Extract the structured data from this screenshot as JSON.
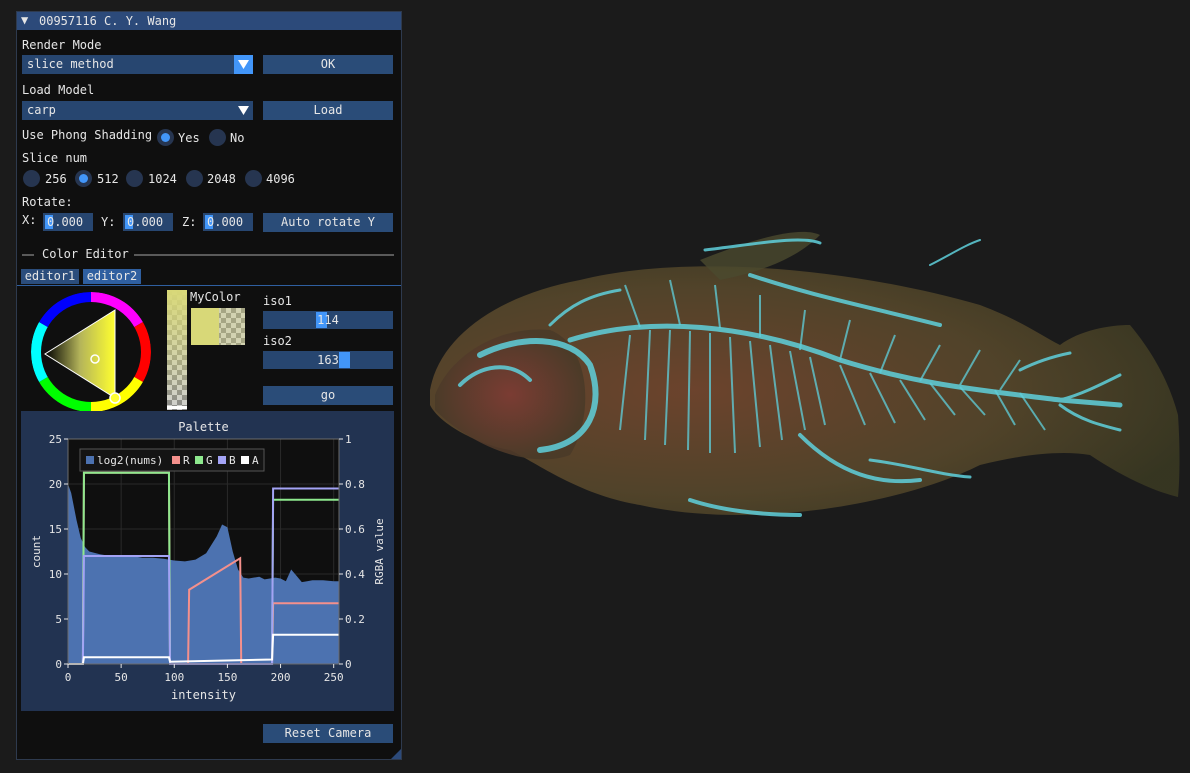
{
  "window": {
    "title": "00957116 C. Y. Wang",
    "collapse_glyph": "▼"
  },
  "render_mode": {
    "label": "Render Mode",
    "value": "slice method",
    "ok_label": "OK"
  },
  "load_model": {
    "label": "Load Model",
    "value": "carp",
    "load_label": "Load"
  },
  "phong": {
    "label": "Use Phong Shadding",
    "options": [
      "Yes",
      "No"
    ],
    "selected": "Yes"
  },
  "slice_num": {
    "label": "Slice num",
    "options": [
      "256",
      "512",
      "1024",
      "2048",
      "4096"
    ],
    "selected": "512"
  },
  "rotate": {
    "label": "Rotate:",
    "x_label": "X:",
    "y_label": "Y:",
    "z_label": "Z:",
    "x": "0.000",
    "y": "0.000",
    "z": "0.000",
    "auto_label": "Auto rotate Y"
  },
  "color_editor": {
    "header": "Color Editor",
    "tabs": [
      "editor1",
      "editor2"
    ],
    "active_tab": "editor2",
    "swatch_label": "MyColor",
    "swatch_color": "#d8d878"
  },
  "iso": {
    "iso1_label": "iso1",
    "iso1": 114,
    "iso2_label": "iso2",
    "iso2": 163,
    "slider_max": 255,
    "go_label": "go"
  },
  "reset_label": "Reset Camera",
  "chart_data": {
    "type": "area",
    "title": "Palette",
    "xlabel": "intensity",
    "ylabel": "count",
    "y2label": "RGBA value",
    "xlim": [
      0,
      255
    ],
    "ylim": [
      0,
      25
    ],
    "y2lim": [
      0,
      1
    ],
    "xticks": [
      "0",
      "50",
      "100",
      "150",
      "200",
      "250"
    ],
    "yticks": [
      "0",
      "5",
      "10",
      "15",
      "20",
      "25"
    ],
    "y2ticks": [
      "0",
      "0.2",
      "0.4",
      "0.6",
      "0.8",
      "1"
    ],
    "legend_position": "top-left",
    "histogram": {
      "name": "log2(nums)",
      "x": [
        0,
        3,
        8,
        12,
        16,
        20,
        30,
        40,
        50,
        60,
        70,
        80,
        90,
        95,
        100,
        110,
        120,
        130,
        140,
        145,
        150,
        155,
        160,
        165,
        170,
        180,
        185,
        190,
        195,
        200,
        205,
        210,
        215,
        220,
        225,
        230,
        240,
        250,
        255
      ],
      "y": [
        20,
        19,
        16,
        14,
        13,
        12.5,
        12.2,
        12,
        12,
        12,
        11.8,
        11.8,
        11.7,
        11.6,
        11.5,
        11.4,
        11.6,
        12.3,
        14.2,
        15.5,
        15.2,
        12.5,
        10.5,
        9.6,
        9.5,
        9.7,
        9.4,
        9.5,
        9.6,
        9.5,
        9.2,
        10.5,
        9.8,
        9.1,
        9.2,
        9.3,
        9.3,
        9.2,
        9.2
      ]
    },
    "series": [
      {
        "name": "R",
        "color": "#f4908c",
        "x": [
          0,
          14,
          15,
          95,
          96,
          113,
          114,
          162,
          163,
          192,
          193,
          255
        ],
        "y": [
          0,
          0,
          0.85,
          0.85,
          0,
          0,
          0.33,
          0.47,
          0,
          0,
          0.27,
          0.27
        ]
      },
      {
        "name": "G",
        "color": "#8ee98e",
        "x": [
          0,
          14,
          15,
          95,
          96,
          192,
          193,
          255
        ],
        "y": [
          0,
          0,
          0.85,
          0.85,
          0,
          0,
          0.73,
          0.73
        ]
      },
      {
        "name": "B",
        "color": "#a3a3f5",
        "x": [
          0,
          14,
          15,
          95,
          96,
          192,
          193,
          255
        ],
        "y": [
          0,
          0,
          0.48,
          0.48,
          0,
          0,
          0.78,
          0.78
        ]
      },
      {
        "name": "A",
        "color": "#ffffff",
        "x": [
          0,
          14,
          15,
          95,
          96,
          192,
          193,
          255
        ],
        "y": [
          0,
          0,
          0.03,
          0.03,
          0.01,
          0.02,
          0.13,
          0.13
        ]
      }
    ]
  }
}
